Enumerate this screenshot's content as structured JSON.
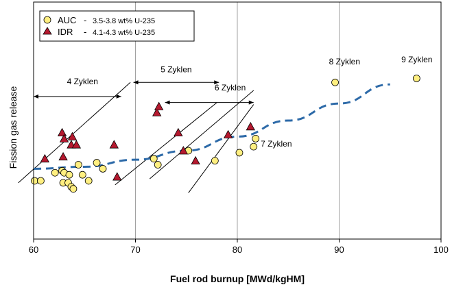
{
  "chart_data": {
    "type": "scatter",
    "xlabel": "Fuel rod burnup [MWd/kgHM]",
    "ylabel": "Fission gas release",
    "xlim": [
      60,
      100
    ],
    "ylim": [
      -1.2,
      10.6
    ],
    "xticks": [
      "60",
      "70",
      "80",
      "90",
      "100"
    ],
    "grid": "vertical lines at 70, 80, 90",
    "legend": {
      "placement": "top-left",
      "entries": [
        {
          "marker": "AUC",
          "desc": "3.5-3.8 wt% U-235",
          "shape": "circle",
          "color": "#ffef80"
        },
        {
          "marker": "IDR",
          "desc": "4.1-4.3 wt% U-235",
          "shape": "triangle",
          "color": "#b5192f"
        }
      ]
    },
    "series": [
      {
        "name": "AUC",
        "points": [
          [
            60.1,
            1.7
          ],
          [
            60.7,
            1.7
          ],
          [
            62.1,
            2.1
          ],
          [
            62.8,
            2.2
          ],
          [
            63.0,
            2.1
          ],
          [
            62.9,
            1.6
          ],
          [
            63.4,
            1.6
          ],
          [
            63.5,
            2.0
          ],
          [
            63.7,
            1.4
          ],
          [
            63.9,
            1.3
          ],
          [
            64.4,
            2.5
          ],
          [
            64.8,
            2.0
          ],
          [
            65.4,
            1.7
          ],
          [
            66.2,
            2.6
          ],
          [
            66.8,
            2.3
          ],
          [
            71.8,
            2.8
          ],
          [
            72.2,
            2.5
          ],
          [
            75.2,
            3.2
          ],
          [
            77.8,
            2.7
          ],
          [
            80.2,
            3.1
          ],
          [
            81.6,
            3.4
          ],
          [
            81.8,
            3.8
          ],
          [
            89.6,
            6.6
          ],
          [
            97.6,
            6.8
          ]
        ]
      },
      {
        "name": "IDR",
        "points": [
          [
            61.1,
            2.8
          ],
          [
            62.8,
            4.1
          ],
          [
            63.0,
            3.8
          ],
          [
            62.9,
            2.9
          ],
          [
            63.7,
            3.5
          ],
          [
            63.8,
            3.9
          ],
          [
            64.2,
            3.5
          ],
          [
            67.9,
            3.5
          ],
          [
            68.2,
            1.9
          ],
          [
            72.1,
            5.1
          ],
          [
            72.3,
            5.4
          ],
          [
            74.2,
            4.1
          ],
          [
            74.7,
            3.2
          ],
          [
            75.9,
            2.7
          ],
          [
            79.1,
            4.0
          ],
          [
            81.3,
            4.4
          ]
        ]
      }
    ],
    "trend_line": {
      "style": "dashed",
      "color": "#2d6aa8",
      "points": [
        [
          60,
          2.3
        ],
        [
          65,
          2.4
        ],
        [
          70,
          2.75
        ],
        [
          75,
          3.2
        ],
        [
          80,
          3.9
        ],
        [
          85,
          4.7
        ],
        [
          90,
          5.55
        ],
        [
          95,
          6.5
        ]
      ]
    },
    "reference_lines": [
      [
        [
          58.5,
          1.6
        ],
        [
          69.5,
          6.6
        ]
      ],
      [
        [
          68.0,
          1.5
        ],
        [
          78.0,
          5.6
        ]
      ],
      [
        [
          71.4,
          1.8
        ],
        [
          81.6,
          6.2
        ]
      ],
      [
        [
          75.2,
          1.1
        ],
        [
          81.6,
          5.5
        ]
      ]
    ],
    "cycle_arrows": [
      {
        "label": "4 Zyklen",
        "x_from": 60,
        "x_to": 68.6,
        "y": 5.9,
        "label_x": 64.8,
        "label_y": 6.5
      },
      {
        "label": "5 Zyklen",
        "x_from": 69.8,
        "x_to": 78.2,
        "y": 6.6,
        "label_x": 74.0,
        "label_y": 7.1
      },
      {
        "label": "6 Zyklen",
        "x_from": 72.9,
        "x_to": 81.6,
        "y": 5.6,
        "label_x": 79.3,
        "label_y": 6.2
      }
    ],
    "annotations": [
      {
        "text": "7 Zyklen",
        "x": 82.3,
        "y": 3.4
      },
      {
        "text": "8 Zyklen",
        "x": 89.0,
        "y": 7.5
      },
      {
        "text": "9 Zyklen",
        "x": 96.1,
        "y": 7.6
      }
    ]
  }
}
